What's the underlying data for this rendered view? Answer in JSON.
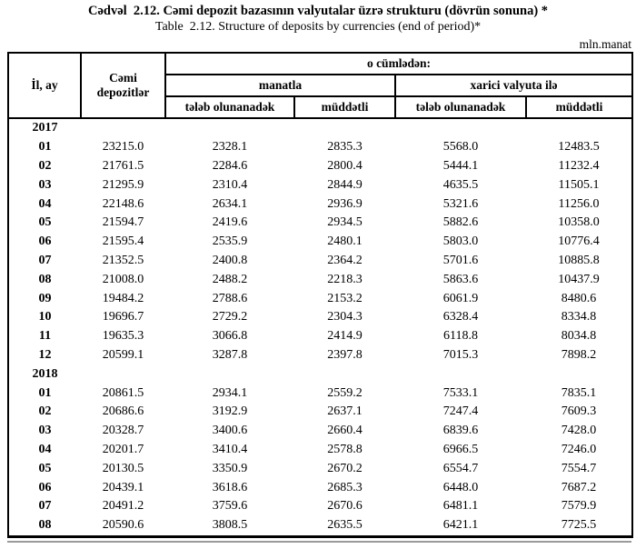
{
  "titles": {
    "az": "Cədvəl  2.12. Cəmi depozit bazasının valyutalar üzrə strukturu (dövrün sonuna) *",
    "en": "Table  2.12. Structure of deposits by currencies (end of period)*",
    "unit": "mln.manat"
  },
  "table": {
    "header": {
      "year_month": "İl, ay",
      "total": "Cəmi depozitlər",
      "including": "o cümlədən:",
      "manat_group": "manatla",
      "foreign_group": "xarici valyuta ilə",
      "demand": "tələb olunanadək",
      "term": "müddətli"
    },
    "sections": [
      {
        "year": "2017",
        "rows": [
          {
            "month": "01",
            "values": [
              "23215.0",
              "2328.1",
              "2835.3",
              "5568.0",
              "12483.5"
            ]
          },
          {
            "month": "02",
            "values": [
              "21761.5",
              "2284.6",
              "2800.4",
              "5444.1",
              "11232.4"
            ]
          },
          {
            "month": "03",
            "values": [
              "21295.9",
              "2310.4",
              "2844.9",
              "4635.5",
              "11505.1"
            ]
          },
          {
            "month": "04",
            "values": [
              "22148.6",
              "2634.1",
              "2936.9",
              "5321.6",
              "11256.0"
            ]
          },
          {
            "month": "05",
            "values": [
              "21594.7",
              "2419.6",
              "2934.5",
              "5882.6",
              "10358.0"
            ]
          },
          {
            "month": "06",
            "values": [
              "21595.4",
              "2535.9",
              "2480.1",
              "5803.0",
              "10776.4"
            ]
          },
          {
            "month": "07",
            "values": [
              "21352.5",
              "2400.8",
              "2364.2",
              "5701.6",
              "10885.8"
            ]
          },
          {
            "month": "08",
            "values": [
              "21008.0",
              "2488.2",
              "2218.3",
              "5863.6",
              "10437.9"
            ]
          },
          {
            "month": "09",
            "values": [
              "19484.2",
              "2788.6",
              "2153.2",
              "6061.9",
              "8480.6"
            ]
          },
          {
            "month": "10",
            "values": [
              "19696.7",
              "2729.2",
              "2304.3",
              "6328.4",
              "8334.8"
            ]
          },
          {
            "month": "11",
            "values": [
              "19635.3",
              "3066.8",
              "2414.9",
              "6118.8",
              "8034.8"
            ]
          },
          {
            "month": "12",
            "values": [
              "20599.1",
              "3287.8",
              "2397.8",
              "7015.3",
              "7898.2"
            ]
          }
        ]
      },
      {
        "year": "2018",
        "rows": [
          {
            "month": "01",
            "values": [
              "20861.5",
              "2934.1",
              "2559.2",
              "7533.1",
              "7835.1"
            ]
          },
          {
            "month": "02",
            "values": [
              "20686.6",
              "3192.9",
              "2637.1",
              "7247.4",
              "7609.3"
            ]
          },
          {
            "month": "03",
            "values": [
              "20328.7",
              "3400.6",
              "2660.4",
              "6839.6",
              "7428.0"
            ]
          },
          {
            "month": "04",
            "values": [
              "20201.7",
              "3410.4",
              "2578.8",
              "6966.5",
              "7246.0"
            ]
          },
          {
            "month": "05",
            "values": [
              "20130.5",
              "3350.9",
              "2670.2",
              "6554.7",
              "7554.7"
            ]
          },
          {
            "month": "06",
            "values": [
              "20439.1",
              "3618.6",
              "2685.3",
              "6448.0",
              "7687.2"
            ]
          },
          {
            "month": "07",
            "values": [
              "20491.2",
              "3759.6",
              "2670.6",
              "6481.1",
              "7579.9"
            ]
          },
          {
            "month": "08",
            "values": [
              "20590.6",
              "3808.5",
              "2635.5",
              "6421.1",
              "7725.5"
            ]
          }
        ]
      }
    ]
  }
}
